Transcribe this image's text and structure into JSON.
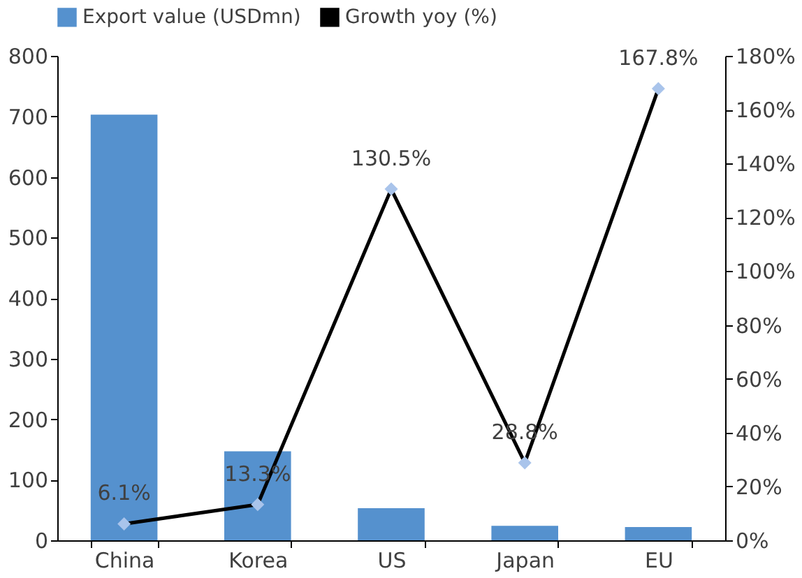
{
  "chart_data": {
    "type": "bar",
    "categories": [
      "China",
      "Korea",
      "US",
      "Japan",
      "EU"
    ],
    "series": [
      {
        "name": "Export value (USDmn)",
        "color": "#5591ce",
        "values": [
          703,
          147,
          53,
          24,
          22
        ]
      },
      {
        "name": "Growth yoy (%)",
        "type": "line",
        "axis": "y2",
        "color": "#000000",
        "marker": "diamond",
        "values": [
          6.1,
          13.3,
          130.5,
          28.8,
          167.8
        ],
        "value_labels": [
          "6.1%",
          "13.3%",
          "130.5%",
          "28.8%",
          "167.8%"
        ]
      }
    ],
    "ylim": [
      0,
      800
    ],
    "yticks": [
      0,
      100,
      200,
      300,
      400,
      500,
      600,
      700,
      800
    ],
    "y2lim": [
      0,
      180
    ],
    "y2ticks": [
      {
        "value": 0,
        "label": "0%"
      },
      {
        "value": 20,
        "label": "20%"
      },
      {
        "value": 40,
        "label": "40%"
      },
      {
        "value": 60,
        "label": "60%"
      },
      {
        "value": 80,
        "label": "80%"
      },
      {
        "value": 100,
        "label": "100%"
      },
      {
        "value": 120,
        "label": "120%"
      },
      {
        "value": 140,
        "label": "140%"
      },
      {
        "value": 160,
        "label": "160%"
      },
      {
        "value": 180,
        "label": "180%"
      }
    ],
    "grid": false,
    "legend": "top"
  }
}
